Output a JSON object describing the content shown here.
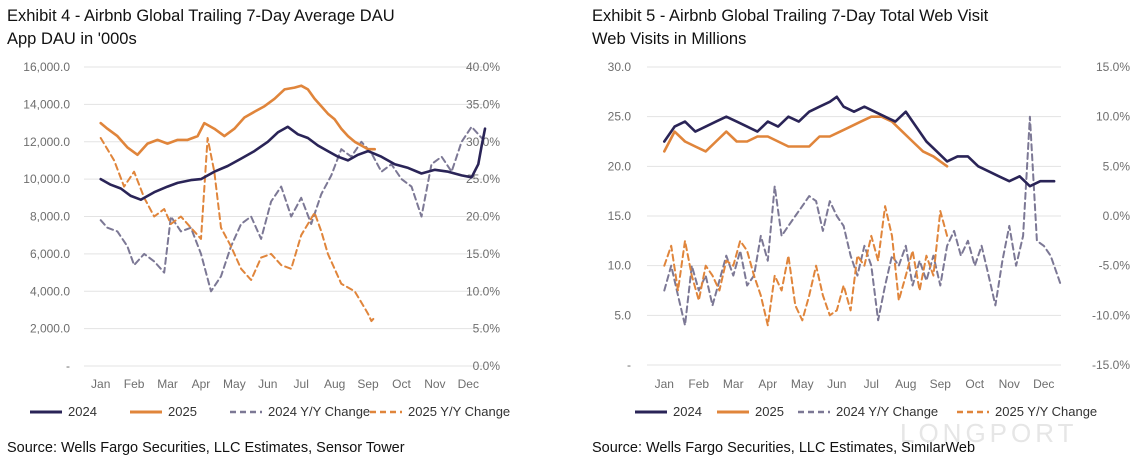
{
  "chart_data": [
    {
      "type": "line",
      "title": "Exhibit 4 - Airbnb Global Trailing 7-Day Average DAU",
      "subtitle": "App DAU in '000s",
      "source": "Source: Wells Fargo Securities, LLC Estimates, Sensor Tower",
      "x_labels": [
        "Jan",
        "Feb",
        "Mar",
        "Apr",
        "May",
        "Jun",
        "Jul",
        "Aug",
        "Sep",
        "Oct",
        "Nov",
        "Dec"
      ],
      "x_unit": "month",
      "xlim": [
        0.5,
        12.5
      ],
      "y_left": {
        "ticks": [
          "16,000.0",
          "14,000.0",
          "12,000.0",
          "10,000.0",
          "8,000.0",
          "6,000.0",
          "4,000.0",
          "2,000.0",
          "-"
        ],
        "ylim": [
          0,
          16000
        ]
      },
      "y_right": {
        "ticks": [
          "40.0%",
          "35.0%",
          "30.0%",
          "25.0%",
          "20.0%",
          "15.0%",
          "10.0%",
          "5.0%",
          "0.0%"
        ],
        "ylim": [
          0,
          40
        ]
      },
      "grid": true,
      "legend": "bottom",
      "series": [
        {
          "name": "2024",
          "axis": "left",
          "style": "solid",
          "color": "#2a2457",
          "x": [
            1.0,
            1.3,
            1.6,
            1.9,
            2.2,
            2.6,
            3.0,
            3.3,
            3.7,
            4.0,
            4.4,
            4.8,
            5.2,
            5.6,
            6.0,
            6.3,
            6.6,
            6.9,
            7.2,
            7.5,
            7.8,
            8.1,
            8.4,
            8.7,
            9.0,
            9.4,
            9.8,
            10.2,
            10.6,
            11.0,
            11.4,
            11.8,
            12.1,
            12.3,
            12.4,
            12.5
          ],
          "values": [
            10000,
            9700,
            9500,
            9100,
            8900,
            9300,
            9600,
            9800,
            9950,
            10000,
            10400,
            10700,
            11100,
            11500,
            12000,
            12500,
            12800,
            12400,
            12200,
            11800,
            11500,
            11200,
            11000,
            11300,
            11500,
            11200,
            10800,
            10600,
            10300,
            10500,
            10400,
            10200,
            10100,
            10800,
            11800,
            12700
          ]
        },
        {
          "name": "2025",
          "axis": "left",
          "style": "solid",
          "color": "#e0853b",
          "x": [
            1.0,
            1.2,
            1.5,
            1.8,
            2.1,
            2.4,
            2.7,
            3.0,
            3.3,
            3.6,
            3.9,
            4.1,
            4.4,
            4.7,
            5.0,
            5.3,
            5.6,
            5.9,
            6.2,
            6.5,
            6.8,
            7.0,
            7.2,
            7.4,
            7.6,
            7.8,
            8.0,
            8.2,
            8.4,
            8.6,
            8.8,
            9.0,
            9.2
          ],
          "values": [
            13000,
            12700,
            12300,
            11700,
            11300,
            11900,
            12100,
            11900,
            12100,
            12100,
            12300,
            13000,
            12700,
            12300,
            12700,
            13300,
            13600,
            13900,
            14300,
            14800,
            14900,
            15000,
            14800,
            14300,
            13900,
            13500,
            13200,
            12700,
            12300,
            12000,
            11800,
            11600,
            11600
          ]
        },
        {
          "name": "2024 Y/Y Change",
          "axis": "right",
          "style": "dashed",
          "color": "#7c7895",
          "x": [
            1.0,
            1.2,
            1.5,
            1.8,
            2.0,
            2.3,
            2.6,
            2.9,
            3.1,
            3.4,
            3.7,
            4.0,
            4.3,
            4.6,
            4.9,
            5.2,
            5.5,
            5.8,
            6.1,
            6.4,
            6.7,
            7.0,
            7.3,
            7.6,
            7.9,
            8.2,
            8.5,
            8.8,
            9.1,
            9.4,
            9.7,
            10.0,
            10.3,
            10.6,
            10.9,
            11.2,
            11.5,
            11.8,
            12.1,
            12.4
          ],
          "values": [
            19.5,
            18.5,
            18.0,
            16.0,
            13.5,
            15.0,
            14.0,
            12.5,
            20.0,
            18.0,
            18.5,
            15.0,
            10.0,
            12.0,
            16.0,
            19.0,
            20.0,
            17.0,
            22.0,
            24.0,
            20.0,
            22.5,
            19.0,
            23.0,
            25.5,
            29.0,
            28.0,
            30.0,
            28.5,
            26.0,
            27.0,
            25.0,
            24.0,
            20.0,
            27.0,
            28.0,
            26.0,
            30.0,
            32.0,
            30.5
          ]
        },
        {
          "name": "2025 Y/Y Change",
          "axis": "right",
          "style": "dashed",
          "color": "#e0853b",
          "x": [
            1.0,
            1.2,
            1.4,
            1.7,
            2.0,
            2.3,
            2.6,
            2.9,
            3.1,
            3.4,
            3.7,
            4.0,
            4.2,
            4.4,
            4.6,
            4.9,
            5.2,
            5.5,
            5.8,
            6.1,
            6.4,
            6.7,
            7.0,
            7.2,
            7.4,
            7.6,
            7.8,
            8.0,
            8.2,
            8.4,
            8.6,
            8.8,
            9.0,
            9.1,
            9.2
          ],
          "values": [
            30.5,
            29.0,
            27.5,
            24.0,
            26.0,
            22.5,
            20.0,
            21.0,
            19.0,
            20.0,
            18.5,
            17.0,
            30.5,
            26.0,
            18.5,
            16.0,
            13.0,
            11.5,
            14.5,
            15.0,
            13.5,
            13.0,
            17.5,
            19.0,
            20.5,
            18.0,
            15.0,
            13.0,
            11.0,
            10.5,
            10.0,
            8.5,
            7.0,
            6.0,
            6.5
          ]
        }
      ]
    },
    {
      "type": "line",
      "title": "Exhibit 5 - Airbnb Global Trailing 7-Day Total Web Visit",
      "subtitle": "Web Visits in Millions",
      "source": "Source: Wells Fargo Securities, LLC Estimates, SimilarWeb",
      "x_labels": [
        "Jan",
        "Feb",
        "Mar",
        "Apr",
        "May",
        "Jun",
        "Jul",
        "Aug",
        "Sep",
        "Oct",
        "Nov",
        "Dec"
      ],
      "x_unit": "month",
      "xlim": [
        0.5,
        12.5
      ],
      "y_left": {
        "ticks": [
          "30.0",
          "25.0",
          "20.0",
          "15.0",
          "10.0",
          "5.0",
          "-"
        ],
        "ylim": [
          0,
          30
        ]
      },
      "y_right": {
        "ticks": [
          "15.0%",
          "10.0%",
          "5.0%",
          "0.0%",
          "-5.0%",
          "-10.0%",
          "-15.0%"
        ],
        "ylim": [
          -15,
          15
        ]
      },
      "grid": true,
      "legend": "bottom",
      "series": [
        {
          "name": "2024",
          "axis": "left",
          "style": "solid",
          "color": "#2a2457",
          "x": [
            1.0,
            1.3,
            1.6,
            1.9,
            2.2,
            2.5,
            2.8,
            3.1,
            3.4,
            3.7,
            4.0,
            4.3,
            4.6,
            4.9,
            5.2,
            5.5,
            5.8,
            6.0,
            6.2,
            6.5,
            6.8,
            7.1,
            7.4,
            7.7,
            8.0,
            8.3,
            8.6,
            8.9,
            9.2,
            9.5,
            9.8,
            10.1,
            10.4,
            10.7,
            11.0,
            11.3,
            11.6,
            11.9,
            12.2,
            12.3
          ],
          "values": [
            22.5,
            24.0,
            24.5,
            23.5,
            24.0,
            24.5,
            25.0,
            24.5,
            24.0,
            23.5,
            24.5,
            24.0,
            25.0,
            24.5,
            25.5,
            26.0,
            26.5,
            27.0,
            26.0,
            25.5,
            26.0,
            25.5,
            25.0,
            24.5,
            25.5,
            24.0,
            22.5,
            21.5,
            20.5,
            21.0,
            21.0,
            20.0,
            19.5,
            19.0,
            18.5,
            19.0,
            18.0,
            18.5,
            18.5,
            18.5
          ]
        },
        {
          "name": "2025",
          "axis": "left",
          "style": "solid",
          "color": "#e0853b",
          "x": [
            1.0,
            1.3,
            1.6,
            1.9,
            2.2,
            2.5,
            2.8,
            3.1,
            3.4,
            3.7,
            4.0,
            4.3,
            4.6,
            4.9,
            5.2,
            5.5,
            5.8,
            6.1,
            6.4,
            6.7,
            7.0,
            7.3,
            7.6,
            7.9,
            8.2,
            8.5,
            8.8,
            9.0,
            9.2
          ],
          "values": [
            21.5,
            23.5,
            22.5,
            22.0,
            21.5,
            22.5,
            23.5,
            22.5,
            22.5,
            23.0,
            23.0,
            22.5,
            22.0,
            22.0,
            22.0,
            23.0,
            23.0,
            23.5,
            24.0,
            24.5,
            25.0,
            25.0,
            24.5,
            23.5,
            22.5,
            21.5,
            21.0,
            20.5,
            20.0
          ]
        },
        {
          "name": "2024 Y/Y Change",
          "axis": "right",
          "style": "dashed",
          "color": "#7c7895",
          "x": [
            1.0,
            1.2,
            1.4,
            1.6,
            1.8,
            2.0,
            2.2,
            2.4,
            2.6,
            2.8,
            3.0,
            3.2,
            3.4,
            3.6,
            3.8,
            4.0,
            4.2,
            4.4,
            4.6,
            4.8,
            5.0,
            5.2,
            5.4,
            5.6,
            5.8,
            6.0,
            6.2,
            6.4,
            6.6,
            6.8,
            7.0,
            7.2,
            7.4,
            7.6,
            7.8,
            8.0,
            8.2,
            8.4,
            8.6,
            8.8,
            9.0,
            9.2,
            9.4,
            9.6,
            9.8,
            10.0,
            10.2,
            10.4,
            10.6,
            10.8,
            11.0,
            11.2,
            11.4,
            11.6,
            11.8,
            12.0,
            12.2,
            12.4,
            12.5
          ],
          "values": [
            -7.5,
            -5.0,
            -8.0,
            -11.0,
            -5.0,
            -7.5,
            -6.0,
            -9.0,
            -6.5,
            -4.0,
            -6.0,
            -3.5,
            -7.0,
            -6.0,
            -2.0,
            -4.5,
            3.0,
            -2.0,
            -1.0,
            0.0,
            1.0,
            2.0,
            1.5,
            -1.5,
            1.5,
            0.0,
            -1.0,
            -4.0,
            -6.0,
            -3.0,
            -5.0,
            -10.5,
            -7.0,
            -4.0,
            -5.0,
            -3.0,
            -7.0,
            -4.5,
            -6.5,
            -4.0,
            -7.0,
            -3.0,
            -1.5,
            -4.0,
            -2.5,
            -5.0,
            -3.0,
            -6.0,
            -9.0,
            -4.5,
            -1.0,
            -5.0,
            -2.0,
            10.0,
            -2.5,
            -3.0,
            -4.0,
            -6.0,
            -7.0
          ]
        },
        {
          "name": "2025 Y/Y Change",
          "axis": "right",
          "style": "dashed",
          "color": "#e0853b",
          "x": [
            1.0,
            1.2,
            1.4,
            1.6,
            1.8,
            2.0,
            2.2,
            2.4,
            2.6,
            2.8,
            3.0,
            3.2,
            3.4,
            3.6,
            3.8,
            4.0,
            4.2,
            4.4,
            4.6,
            4.8,
            5.0,
            5.2,
            5.4,
            5.6,
            5.8,
            6.0,
            6.2,
            6.4,
            6.6,
            6.8,
            7.0,
            7.2,
            7.4,
            7.6,
            7.8,
            8.0,
            8.2,
            8.4,
            8.6,
            8.8,
            9.0,
            9.2
          ],
          "values": [
            -5.0,
            -3.0,
            -7.5,
            -2.5,
            -6.0,
            -8.5,
            -5.0,
            -6.0,
            -7.5,
            -4.5,
            -5.0,
            -2.5,
            -3.5,
            -6.0,
            -8.0,
            -11.0,
            -6.0,
            -7.5,
            -4.0,
            -9.0,
            -10.5,
            -8.0,
            -5.0,
            -8.0,
            -10.0,
            -9.5,
            -7.0,
            -9.5,
            -4.0,
            -5.0,
            -2.0,
            -4.5,
            1.0,
            -2.0,
            -8.5,
            -6.0,
            -3.5,
            -7.5,
            -4.0,
            -6.0,
            0.5,
            -2.0
          ]
        }
      ]
    }
  ],
  "legend_entries": [
    "2024",
    "2025",
    "2024 Y/Y Change",
    "2025 Y/Y Change"
  ],
  "watermark": "LONGPORT",
  "colors": {
    "series_2024": "#2a2457",
    "series_2025": "#e0853b",
    "yoy_2024": "#7c7895",
    "grid": "#e3e3e3",
    "tick_text": "#6e6e6e"
  }
}
